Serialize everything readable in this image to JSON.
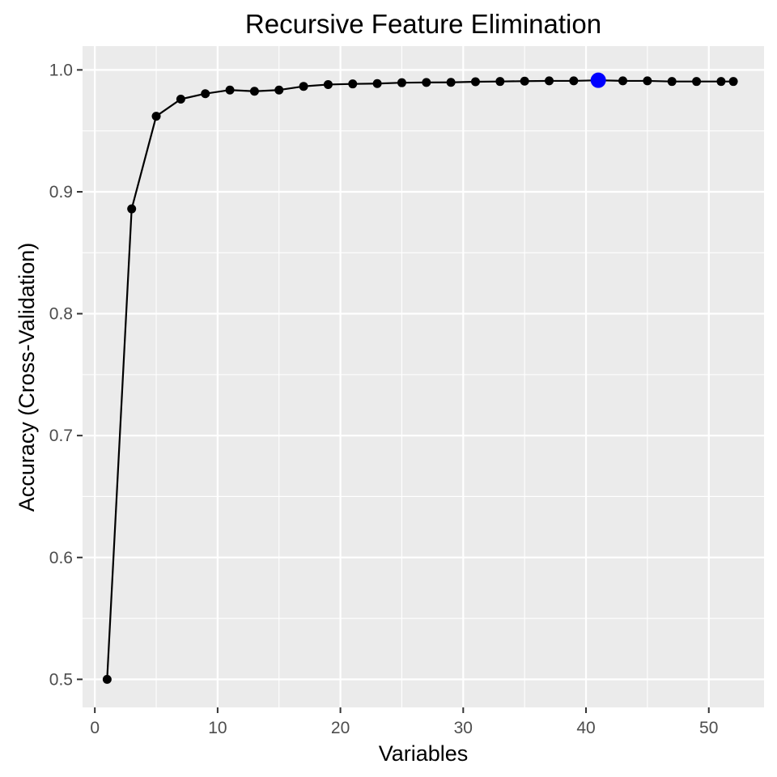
{
  "chart_data": {
    "type": "line",
    "title": "Recursive Feature Elimination",
    "xlabel": "Variables",
    "ylabel": "Accuracy (Cross-Validation)",
    "xlim": [
      -1,
      54.5
    ],
    "ylim": [
      0.477,
      1.0195
    ],
    "x_ticks": [
      0,
      10,
      20,
      30,
      40,
      50
    ],
    "x_tick_labels": [
      "0",
      "10",
      "20",
      "30",
      "40",
      "50"
    ],
    "y_ticks": [
      0.5,
      0.6,
      0.7,
      0.8,
      0.9,
      1.0
    ],
    "y_tick_labels": [
      "0.5",
      "0.6",
      "0.7",
      "0.8",
      "0.9",
      "1.0"
    ],
    "grid": true,
    "series": [
      {
        "x": [
          1,
          3,
          5,
          7,
          9,
          11,
          13,
          15,
          17,
          19,
          21,
          23,
          25,
          27,
          29,
          31,
          33,
          35,
          37,
          39,
          41,
          43,
          45,
          47,
          49,
          51,
          52
        ],
        "y": [
          0.5,
          0.886,
          0.962,
          0.976,
          0.9805,
          0.9835,
          0.9825,
          0.9835,
          0.9865,
          0.988,
          0.9885,
          0.9888,
          0.9895,
          0.9897,
          0.9898,
          0.9903,
          0.9905,
          0.9908,
          0.991,
          0.991,
          0.9915,
          0.991,
          0.991,
          0.9905,
          0.9905,
          0.9905,
          0.9905
        ]
      }
    ],
    "highlight": {
      "x": 41,
      "y": 0.9915,
      "color": "#0000ff"
    },
    "colors": {
      "panel": "#ebebeb",
      "grid": "#ffffff",
      "line": "#000000",
      "point": "#000000",
      "tick_label": "#4d4d4d",
      "axis_tick": "#333333"
    }
  }
}
